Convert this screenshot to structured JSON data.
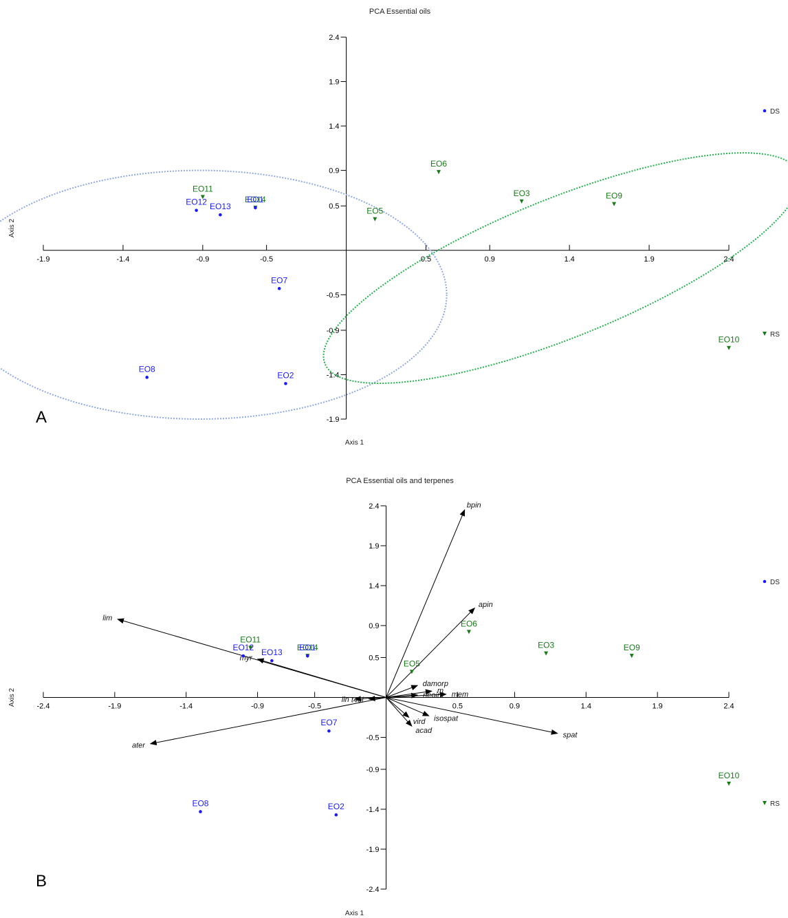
{
  "chart_data": [
    {
      "type": "scatter",
      "panel_letter": "A",
      "title": "PCA Essential oils",
      "xlabel": "Axis 1",
      "ylabel": "Axis 2",
      "xlim": [
        -1.9,
        2.4
      ],
      "ylim": [
        -1.9,
        2.4
      ],
      "x_ticks": [
        -1.9,
        -1.4,
        -0.9,
        -0.5,
        0.5,
        0.9,
        1.4,
        1.9,
        2.4
      ],
      "y_ticks": [
        2.4,
        1.9,
        1.4,
        0.9,
        0.5,
        -0.5,
        -0.9,
        -1.4,
        -1.9
      ],
      "legend": [
        {
          "name": "DS",
          "marker": "dot",
          "color": "#1a1aff"
        },
        {
          "name": "RS",
          "marker": "triangle",
          "color": "#1a7a1a"
        }
      ],
      "points": [
        {
          "label": "EO11",
          "group": "RS",
          "x": -0.9,
          "y": 0.6
        },
        {
          "label": "EO12",
          "group": "DS",
          "x": -0.94,
          "y": 0.45
        },
        {
          "label": "EO13",
          "group": "DS",
          "x": -0.79,
          "y": 0.4
        },
        {
          "label": "EO14",
          "group": "RS",
          "x": -0.57,
          "y": 0.48
        },
        {
          "label": "EO1",
          "group": "DS",
          "x": -0.57,
          "y": 0.48
        },
        {
          "label": "EO7",
          "group": "DS",
          "x": -0.42,
          "y": -0.43
        },
        {
          "label": "EO8",
          "group": "DS",
          "x": -1.25,
          "y": -1.43
        },
        {
          "label": "EO2",
          "group": "DS",
          "x": -0.38,
          "y": -1.5
        },
        {
          "label": "EO5",
          "group": "RS",
          "x": 0.18,
          "y": 0.35
        },
        {
          "label": "EO6",
          "group": "RS",
          "x": 0.58,
          "y": 0.88
        },
        {
          "label": "EO3",
          "group": "RS",
          "x": 1.1,
          "y": 0.55
        },
        {
          "label": "EO9",
          "group": "RS",
          "x": 1.68,
          "y": 0.52
        },
        {
          "label": "EO10",
          "group": "RS",
          "x": 2.4,
          "y": -1.1
        }
      ],
      "ellipses": [
        {
          "group": "DS",
          "color": "#8fa8e6",
          "cx": -0.92,
          "cy": -0.5,
          "rx": 1.55,
          "ry": 1.4,
          "angle_deg": 0
        },
        {
          "group": "RS",
          "color": "#22b14c",
          "cx": 1.35,
          "cy": -0.2,
          "rx": 1.6,
          "ry": 0.78,
          "angle_deg": -22
        }
      ]
    },
    {
      "type": "scatter",
      "panel_letter": "B",
      "title": "PCA Essential oils and terpenes",
      "xlabel": "Axis 1",
      "ylabel": "Axis 2",
      "xlim": [
        -2.4,
        2.4
      ],
      "ylim": [
        -2.4,
        2.4
      ],
      "x_ticks": [
        -2.4,
        -1.9,
        -1.4,
        -0.9,
        -0.5,
        0.5,
        0.9,
        1.4,
        1.9,
        2.4
      ],
      "y_ticks": [
        2.4,
        1.9,
        1.4,
        0.9,
        0.5,
        -0.5,
        -0.9,
        -1.4,
        -1.9,
        -2.4
      ],
      "legend": [
        {
          "name": "DS",
          "marker": "dot",
          "color": "#1a1aff"
        },
        {
          "name": "RS",
          "marker": "triangle",
          "color": "#1a7a1a"
        }
      ],
      "points": [
        {
          "label": "EO11",
          "group": "RS",
          "x": -0.95,
          "y": 0.62
        },
        {
          "label": "EO12",
          "group": "DS",
          "x": -1.0,
          "y": 0.52
        },
        {
          "label": "EO13",
          "group": "DS",
          "x": -0.8,
          "y": 0.46
        },
        {
          "label": "EO14",
          "group": "RS",
          "x": -0.55,
          "y": 0.52
        },
        {
          "label": "EO1",
          "group": "DS",
          "x": -0.55,
          "y": 0.52
        },
        {
          "label": "EO7",
          "group": "DS",
          "x": -0.4,
          "y": -0.42
        },
        {
          "label": "EO8",
          "group": "DS",
          "x": -1.3,
          "y": -1.43
        },
        {
          "label": "EO2",
          "group": "DS",
          "x": -0.35,
          "y": -1.47
        },
        {
          "label": "EO5",
          "group": "RS",
          "x": 0.18,
          "y": 0.32
        },
        {
          "label": "EO6",
          "group": "RS",
          "x": 0.58,
          "y": 0.82
        },
        {
          "label": "EO3",
          "group": "RS",
          "x": 1.12,
          "y": 0.55
        },
        {
          "label": "EO9",
          "group": "RS",
          "x": 1.72,
          "y": 0.52
        },
        {
          "label": "EO10",
          "group": "RS",
          "x": 2.4,
          "y": -1.08
        }
      ],
      "vectors": [
        {
          "label": "bpin",
          "x": 0.55,
          "y": 2.35
        },
        {
          "label": "apin",
          "x": 0.62,
          "y": 1.12
        },
        {
          "label": "lim",
          "x": -1.88,
          "y": 0.98
        },
        {
          "label": "myr",
          "x": -0.9,
          "y": 0.48
        },
        {
          "label": "ater",
          "x": -1.65,
          "y": -0.58
        },
        {
          "label": "spat",
          "x": 1.2,
          "y": -0.45
        },
        {
          "label": "lin",
          "x": -0.22,
          "y": -0.02
        },
        {
          "label": "t4ol",
          "x": -0.12,
          "y": -0.02
        },
        {
          "label": "damorp",
          "x": 0.22,
          "y": 0.15
        },
        {
          "label": "m",
          "x": 0.32,
          "y": 0.08
        },
        {
          "label": "mem",
          "x": 0.42,
          "y": 0.04
        },
        {
          "label": "neoint",
          "x": 0.22,
          "y": 0.03
        },
        {
          "label": "isospat",
          "x": 0.3,
          "y": -0.23
        },
        {
          "label": "vird",
          "x": 0.16,
          "y": -0.25
        },
        {
          "label": "acad",
          "x": 0.18,
          "y": -0.36
        }
      ]
    }
  ]
}
